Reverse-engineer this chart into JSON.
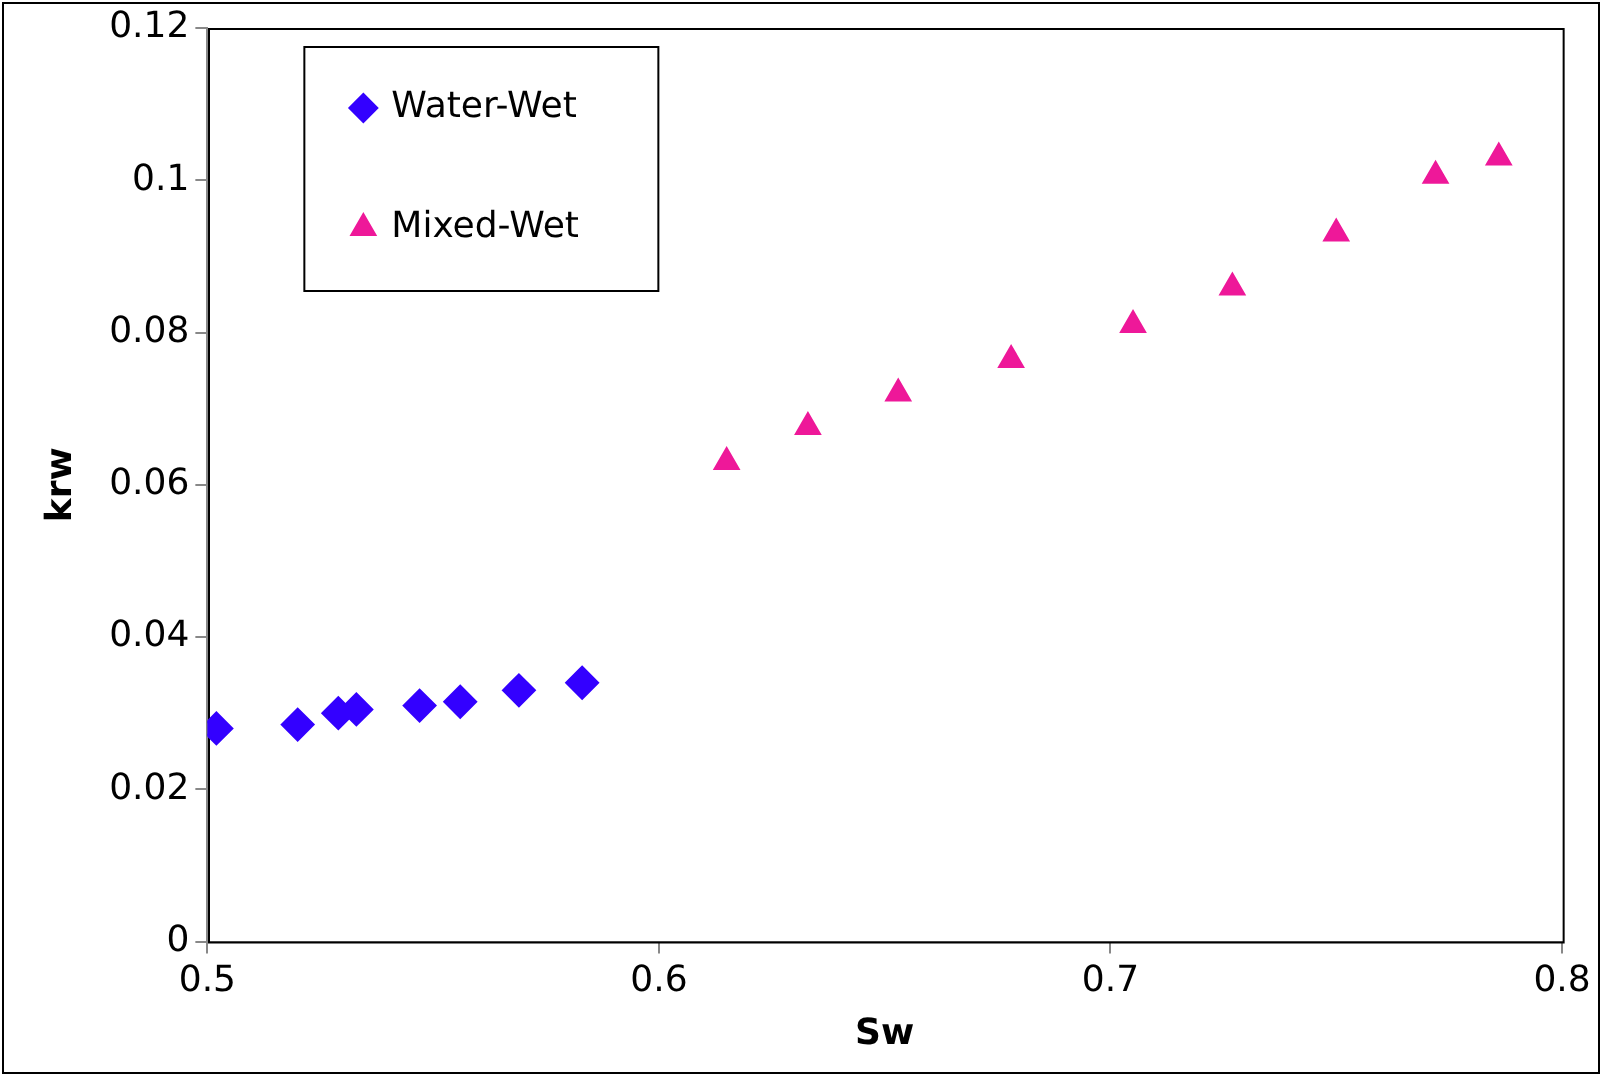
{
  "chart_data": {
    "type": "scatter",
    "xlabel": "Sw",
    "ylabel": "krw",
    "xlim": [
      0.5,
      0.8
    ],
    "xticks": [
      0.5,
      0.6,
      0.7,
      0.8
    ],
    "ylim": [
      0,
      0.12
    ],
    "yticks": [
      0,
      0.02,
      0.04,
      0.06,
      0.08,
      0.1,
      0.12
    ],
    "grid": false,
    "legend": "top left",
    "series": [
      {
        "name": "Water-Wet",
        "color": "#3300ff",
        "marker": "diamond",
        "x": [
          0.502,
          0.52,
          0.529,
          0.533,
          0.547,
          0.556,
          0.569,
          0.583
        ],
        "values": [
          0.028,
          0.0285,
          0.03,
          0.0305,
          0.031,
          0.0315,
          0.033,
          0.034
        ]
      },
      {
        "name": "Mixed-Wet",
        "color": "#ee1899",
        "marker": "triangle",
        "x": [
          0.615,
          0.633,
          0.653,
          0.678,
          0.705,
          0.727,
          0.75,
          0.772,
          0.786
        ],
        "values": [
          0.063,
          0.0676,
          0.072,
          0.0764,
          0.081,
          0.0859,
          0.093,
          0.1006,
          0.103
        ]
      }
    ]
  }
}
